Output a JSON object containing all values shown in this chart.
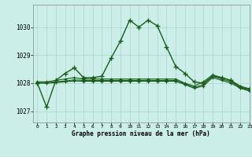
{
  "title": "Graphe pression niveau de la mer (hPa)",
  "background_color": "#cceee8",
  "grid_color": "#aad4ce",
  "line_color": "#1a5c1a",
  "xlim": [
    -0.5,
    23
  ],
  "ylim": [
    1026.6,
    1030.8
  ],
  "yticks": [
    1027,
    1028,
    1029,
    1030
  ],
  "xticks": [
    0,
    1,
    2,
    3,
    4,
    5,
    6,
    7,
    8,
    9,
    10,
    11,
    12,
    13,
    14,
    15,
    16,
    17,
    18,
    19,
    20,
    21,
    22,
    23
  ],
  "series": [
    {
      "x": [
        0,
        1,
        2,
        3,
        4,
        5,
        6,
        7,
        8,
        9,
        10,
        11,
        12,
        13,
        14,
        15,
        16,
        17,
        18,
        19,
        20,
        21,
        22,
        23
      ],
      "y": [
        1028.0,
        1027.15,
        1028.1,
        1028.35,
        1028.55,
        1028.2,
        1028.2,
        1028.25,
        1028.9,
        1029.5,
        1030.25,
        1030.0,
        1030.25,
        1030.05,
        1029.3,
        1028.6,
        1028.35,
        1028.05,
        1028.0,
        1028.25,
        1028.2,
        1028.1,
        1027.85,
        1027.8
      ]
    },
    {
      "x": [
        0,
        1,
        2,
        3,
        4,
        5,
        6,
        7,
        8,
        9,
        10,
        11,
        12,
        13,
        14,
        15,
        16,
        17,
        18,
        19,
        20,
        21,
        22,
        23
      ],
      "y": [
        1028.05,
        1028.05,
        1028.1,
        1028.15,
        1028.2,
        1028.15,
        1028.15,
        1028.15,
        1028.15,
        1028.15,
        1028.15,
        1028.15,
        1028.15,
        1028.15,
        1028.15,
        1028.15,
        1028.0,
        1027.9,
        1028.05,
        1028.3,
        1028.2,
        1028.1,
        1027.9,
        1027.8
      ]
    },
    {
      "x": [
        0,
        1,
        2,
        3,
        4,
        5,
        6,
        7,
        8,
        9,
        10,
        11,
        12,
        13,
        14,
        15,
        16,
        17,
        18,
        19,
        20,
        21,
        22,
        23
      ],
      "y": [
        1028.02,
        1028.02,
        1028.05,
        1028.08,
        1028.12,
        1028.1,
        1028.1,
        1028.1,
        1028.1,
        1028.1,
        1028.1,
        1028.1,
        1028.1,
        1028.1,
        1028.1,
        1028.1,
        1027.98,
        1027.85,
        1027.95,
        1028.25,
        1028.15,
        1028.05,
        1027.85,
        1027.75
      ]
    },
    {
      "x": [
        0,
        1,
        2,
        3,
        4,
        5,
        6,
        7,
        8,
        9,
        10,
        11,
        12,
        13,
        14,
        15,
        16,
        17,
        18,
        19,
        20,
        21,
        22,
        23
      ],
      "y": [
        1028.0,
        1028.0,
        1028.02,
        1028.05,
        1028.08,
        1028.07,
        1028.07,
        1028.07,
        1028.07,
        1028.07,
        1028.07,
        1028.07,
        1028.07,
        1028.07,
        1028.07,
        1028.07,
        1027.95,
        1027.82,
        1027.9,
        1028.2,
        1028.1,
        1028.0,
        1027.82,
        1027.72
      ]
    }
  ]
}
